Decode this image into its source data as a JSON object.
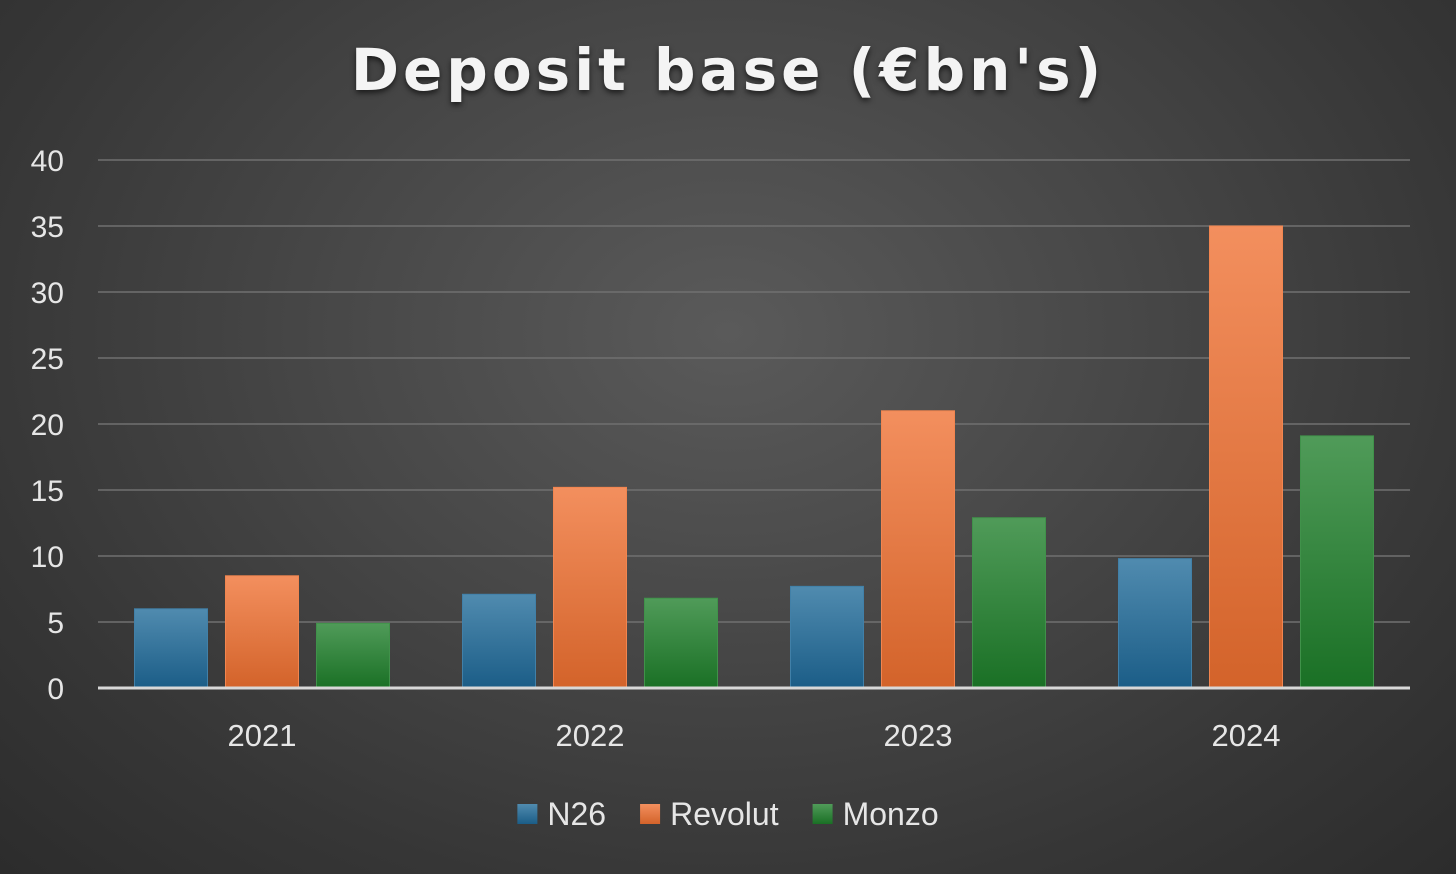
{
  "chart_data": {
    "type": "bar",
    "title": "Deposit base (€bn's)",
    "categories": [
      "2021",
      "2022",
      "2023",
      "2024"
    ],
    "series": [
      {
        "name": "N26",
        "values": [
          6.0,
          7.1,
          7.7,
          9.8
        ],
        "color": "#1f6a99"
      },
      {
        "name": "Revolut",
        "values": [
          8.5,
          15.2,
          21.0,
          35.0
        ],
        "color": "#f07030"
      },
      {
        "name": "Monzo",
        "values": [
          4.9,
          6.8,
          12.9,
          19.1
        ],
        "color": "#1e7f2a"
      }
    ],
    "ylim": [
      0,
      40
    ],
    "yticks": [
      0,
      5,
      10,
      15,
      20,
      25,
      30,
      35,
      40
    ],
    "xlabel": "",
    "ylabel": "",
    "grid": true,
    "legend_position": "bottom"
  }
}
